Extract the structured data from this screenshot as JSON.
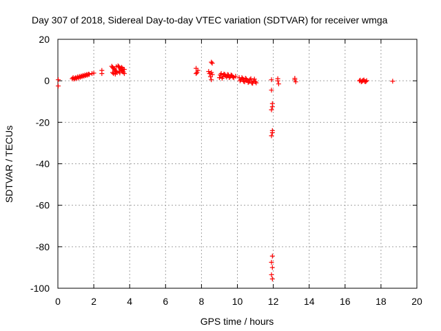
{
  "chart_data": {
    "type": "scatter",
    "title": "Day 307 of 2018, Sidereal Day-to-day VTEC variation (SDTVAR) for receiver wmga",
    "xlabel": "GPS time / hours",
    "ylabel": "SDTVAR / TECUs",
    "xlim": [
      0,
      20
    ],
    "ylim": [
      -100,
      20
    ],
    "x_ticks": [
      "0",
      "2",
      "4",
      "6",
      "8",
      "10",
      "12",
      "14",
      "16",
      "18",
      "20"
    ],
    "y_ticks": [
      "20",
      "0",
      "-20",
      "-40",
      "-60",
      "-80",
      "-100"
    ],
    "grid": true,
    "marker": "plus",
    "series": [
      {
        "name": "SDTVAR",
        "color": "#ff0000",
        "points": [
          [
            0.02,
            0.5
          ],
          [
            0.02,
            -2.5
          ],
          [
            0.8,
            1.0
          ],
          [
            0.85,
            1.5
          ],
          [
            0.9,
            0.8
          ],
          [
            0.95,
            1.2
          ],
          [
            1.0,
            1.6
          ],
          [
            1.05,
            1.1
          ],
          [
            1.1,
            1.9
          ],
          [
            1.15,
            1.4
          ],
          [
            1.2,
            2.1
          ],
          [
            1.25,
            1.7
          ],
          [
            1.3,
            2.3
          ],
          [
            1.35,
            2.0
          ],
          [
            1.4,
            2.6
          ],
          [
            1.45,
            2.2
          ],
          [
            1.5,
            2.8
          ],
          [
            1.55,
            2.5
          ],
          [
            1.6,
            3.0
          ],
          [
            1.65,
            2.7
          ],
          [
            1.7,
            3.2
          ],
          [
            1.75,
            3.1
          ],
          [
            1.9,
            3.5
          ],
          [
            2.0,
            3.7
          ],
          [
            2.45,
            3.5
          ],
          [
            2.45,
            5.0
          ],
          [
            3.0,
            7.0
          ],
          [
            3.05,
            6.5
          ],
          [
            3.1,
            6.0
          ],
          [
            3.15,
            5.5
          ],
          [
            3.2,
            5.0
          ],
          [
            3.25,
            4.5
          ],
          [
            3.3,
            4.0
          ],
          [
            3.35,
            7.2
          ],
          [
            3.4,
            6.8
          ],
          [
            3.45,
            6.2
          ],
          [
            3.5,
            5.8
          ],
          [
            3.55,
            5.2
          ],
          [
            3.6,
            4.8
          ],
          [
            3.65,
            4.2
          ],
          [
            3.7,
            3.5
          ],
          [
            3.1,
            3.5
          ],
          [
            3.2,
            3.2
          ],
          [
            3.4,
            4.5
          ],
          [
            3.55,
            6.5
          ],
          [
            3.05,
            4.0
          ],
          [
            3.25,
            6.8
          ],
          [
            3.45,
            3.8
          ],
          [
            3.6,
            6.0
          ],
          [
            3.7,
            5.5
          ],
          [
            7.7,
            6.0
          ],
          [
            7.75,
            4.0
          ],
          [
            7.8,
            5.0
          ],
          [
            7.7,
            3.5
          ],
          [
            8.4,
            4.5
          ],
          [
            8.45,
            3.5
          ],
          [
            8.5,
            2.0
          ],
          [
            8.55,
            4.0
          ],
          [
            8.6,
            3.0
          ],
          [
            8.55,
            9.0
          ],
          [
            8.6,
            8.5
          ],
          [
            8.55,
            0.5
          ],
          [
            9.0,
            1.5
          ],
          [
            9.1,
            3.5
          ],
          [
            9.2,
            2.0
          ],
          [
            9.3,
            3.0
          ],
          [
            9.4,
            1.8
          ],
          [
            9.5,
            2.8
          ],
          [
            9.6,
            2.0
          ],
          [
            9.7,
            2.5
          ],
          [
            9.8,
            1.5
          ],
          [
            9.9,
            2.2
          ],
          [
            9.05,
            2.8
          ],
          [
            9.15,
            1.2
          ],
          [
            9.25,
            3.2
          ],
          [
            9.35,
            2.4
          ],
          [
            9.45,
            3.0
          ],
          [
            9.55,
            1.5
          ],
          [
            9.65,
            2.8
          ],
          [
            9.75,
            1.8
          ],
          [
            10.1,
            1.5
          ],
          [
            10.2,
            0.5
          ],
          [
            10.3,
            1.0
          ],
          [
            10.4,
            -0.5
          ],
          [
            10.5,
            0.8
          ],
          [
            10.6,
            -0.8
          ],
          [
            10.7,
            0.5
          ],
          [
            10.8,
            -1.0
          ],
          [
            10.9,
            0.0
          ],
          [
            11.0,
            -0.5
          ],
          [
            10.15,
            0.0
          ],
          [
            10.25,
            1.5
          ],
          [
            10.35,
            -0.2
          ],
          [
            10.45,
            1.2
          ],
          [
            10.55,
            0.2
          ],
          [
            10.65,
            -0.5
          ],
          [
            10.75,
            1.0
          ],
          [
            10.85,
            -1.2
          ],
          [
            10.95,
            0.8
          ],
          [
            11.05,
            -1.0
          ],
          [
            11.9,
            0.5
          ],
          [
            11.9,
            -4.5
          ],
          [
            11.95,
            -11.0
          ],
          [
            11.95,
            -12.5
          ],
          [
            11.9,
            -14.0
          ],
          [
            11.95,
            -25.0
          ],
          [
            11.9,
            -26.5
          ],
          [
            11.95,
            -24.0
          ],
          [
            11.95,
            -84.5
          ],
          [
            11.9,
            -87.5
          ],
          [
            11.95,
            -90.0
          ],
          [
            11.9,
            -93.5
          ],
          [
            11.95,
            -95.5
          ],
          [
            12.25,
            0.0
          ],
          [
            12.3,
            -1.5
          ],
          [
            12.25,
            1.0
          ],
          [
            13.2,
            0.5
          ],
          [
            13.25,
            -0.5
          ],
          [
            13.2,
            1.2
          ],
          [
            16.8,
            0.0
          ],
          [
            16.9,
            -0.5
          ],
          [
            17.0,
            0.2
          ],
          [
            17.1,
            -0.3
          ],
          [
            17.2,
            0.1
          ],
          [
            16.85,
            0.3
          ],
          [
            16.95,
            -0.2
          ],
          [
            17.05,
            0.4
          ],
          [
            17.15,
            -0.4
          ],
          [
            18.65,
            -0.2
          ]
        ]
      }
    ]
  }
}
